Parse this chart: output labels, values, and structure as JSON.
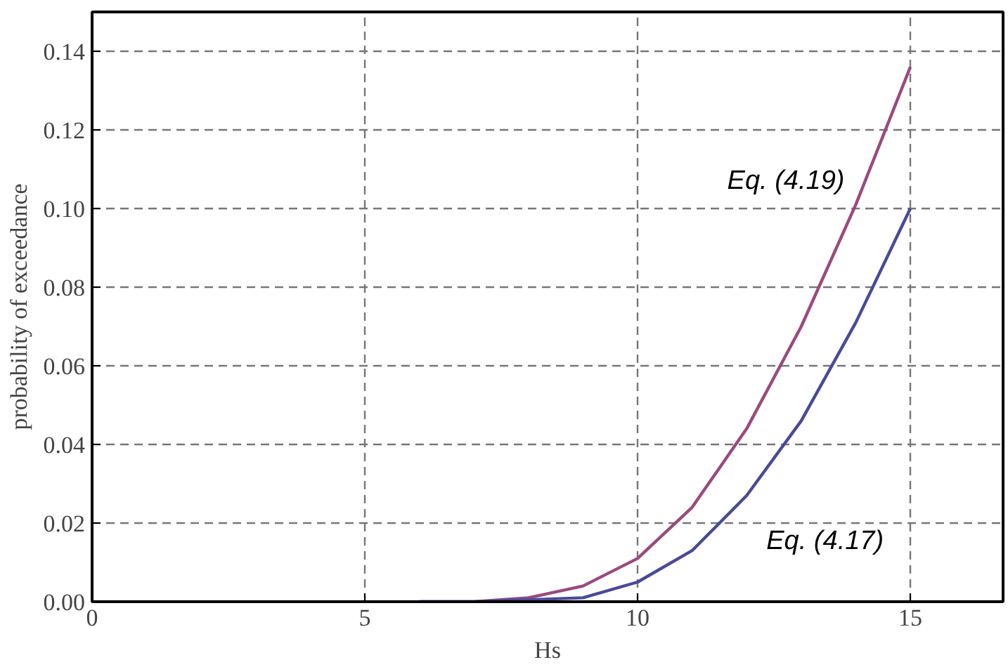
{
  "chart_data": {
    "type": "line",
    "xlabel": "Hs",
    "ylabel": "probability of exceedance",
    "x": [
      6,
      7,
      8,
      9,
      10,
      11,
      12,
      13,
      14,
      15
    ],
    "series": [
      {
        "name": "Eq. (4.19)",
        "color": "#9b4a7e",
        "values": [
          0,
          0,
          0.001,
          0.004,
          0.011,
          0.024,
          0.044,
          0.07,
          0.101,
          0.136
        ]
      },
      {
        "name": "Eq. (4.17)",
        "color": "#4a4a9a",
        "values": [
          0,
          0,
          0.0005,
          0.001,
          0.005,
          0.013,
          0.027,
          0.046,
          0.071,
          0.1
        ]
      }
    ],
    "xlim": [
      0,
      16.7
    ],
    "ylim": [
      0,
      0.15
    ],
    "xticks": [
      0,
      5,
      10,
      15
    ],
    "yticks": [
      {
        "value": 0,
        "label": "0.00"
      },
      {
        "value": 0.02,
        "label": "0.02"
      },
      {
        "value": 0.04,
        "label": "0.04"
      },
      {
        "value": 0.06,
        "label": "0.06"
      },
      {
        "value": 0.08,
        "label": "0.08"
      },
      {
        "value": 0.1,
        "label": "0.10"
      },
      {
        "value": 0.12,
        "label": "0.12"
      },
      {
        "value": 0.14,
        "label": "0.14"
      }
    ],
    "grid": true,
    "marker": "none",
    "line_style": "solid"
  }
}
